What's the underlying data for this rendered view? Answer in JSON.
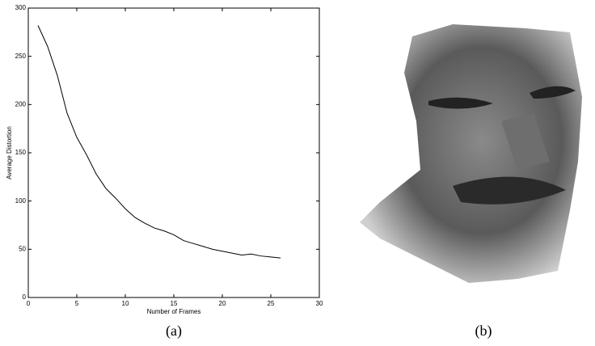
{
  "chart_data": {
    "type": "line",
    "x_label": "Number of Frames",
    "y_label": "Average Distortion",
    "caption": "(a)",
    "x": [
      1,
      2,
      3,
      4,
      5,
      6,
      7,
      8,
      9,
      10,
      11,
      12,
      13,
      14,
      15,
      16,
      17,
      18,
      19,
      20,
      21,
      22,
      23,
      24,
      25,
      26
    ],
    "values": [
      282,
      260,
      230,
      191,
      166,
      148,
      128,
      113,
      103,
      92,
      83,
      77,
      72,
      69,
      65,
      59,
      56,
      53,
      50,
      48,
      46,
      44,
      45,
      43,
      42,
      41
    ],
    "color": "#000000",
    "xlim": [
      0,
      30
    ],
    "xticks": [
      0,
      5,
      10,
      15,
      20,
      25,
      30
    ],
    "ylim": [
      0,
      300
    ],
    "yticks": [
      0,
      50,
      100,
      150,
      200,
      250,
      300
    ]
  },
  "image": {
    "caption": "(b)"
  }
}
